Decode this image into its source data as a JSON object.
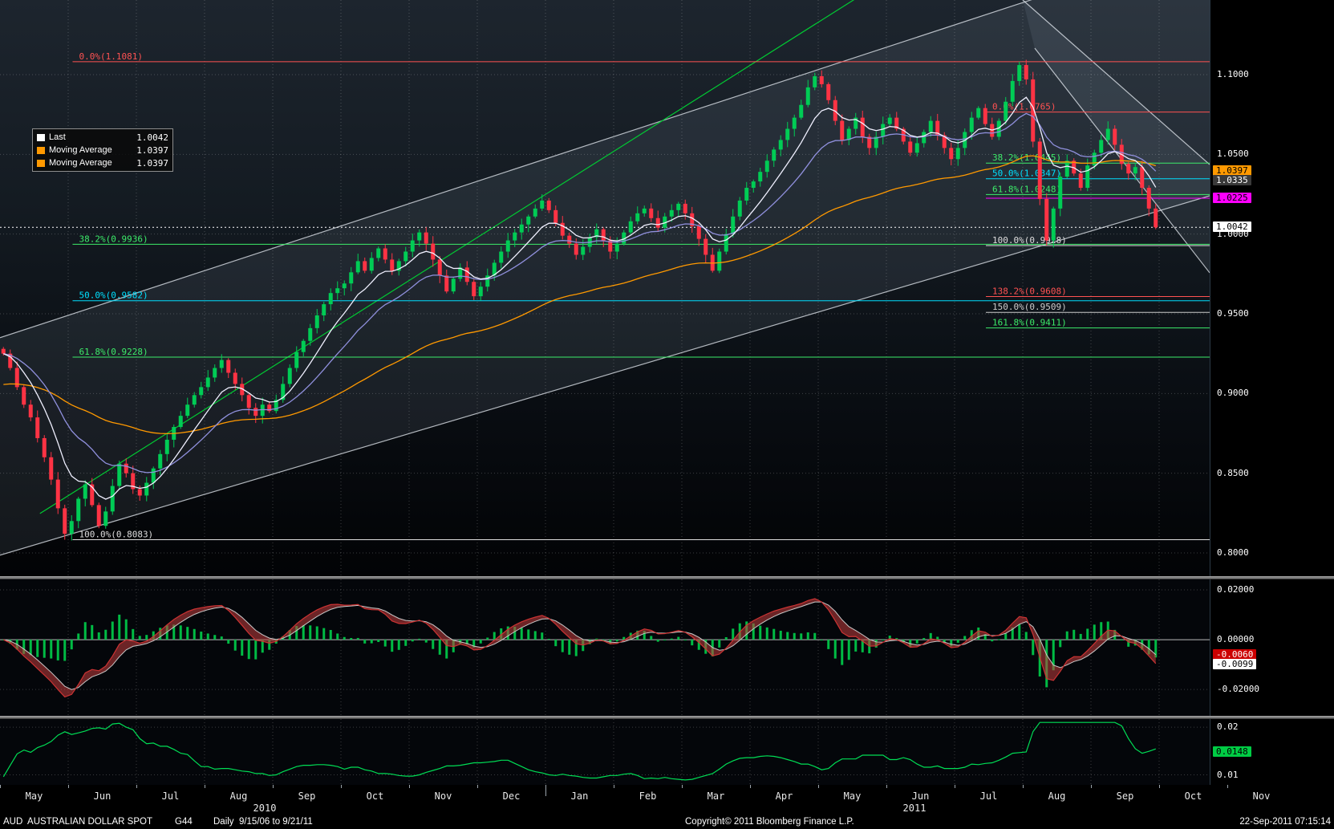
{
  "window": {
    "security": "AUD  AUSTRALIAN DOLLAR SPOT",
    "function_code": "G44",
    "date_range": "Daily  9/15/06 to 9/21/11",
    "copyright": "Copyright© 2011 Bloomberg Finance L.P.",
    "timestamp": "22-Sep-2011 07:15:14"
  },
  "legend": {
    "items": [
      {
        "color": "#ffffff",
        "label": "Last",
        "value": "1.0042"
      },
      {
        "color": "#ff9900",
        "label": "Moving Average",
        "value": "1.0397"
      },
      {
        "color": "#ff9900",
        "label": "Moving Average",
        "value": "1.0397"
      }
    ]
  },
  "chart_data": [
    {
      "type": "candlestick",
      "title": "AUD/USD daily candlesticks with moving averages, trend channels and Fibonacci retracements",
      "months": [
        "May",
        "Jun",
        "Jul",
        "Aug",
        "Sep",
        "Oct",
        "Nov",
        "Dec",
        "Jan",
        "Feb",
        "Mar",
        "Apr",
        "May",
        "Jun",
        "Jul",
        "Aug",
        "Sep",
        "Oct",
        "Nov"
      ],
      "year_labels": [
        {
          "label": "2010",
          "x": 330
        },
        {
          "label": "2011",
          "x": 1140
        }
      ],
      "data_month_span": 17,
      "first_open": 0.928,
      "last_price": 1.0042,
      "closes": [
        0.925,
        0.916,
        0.904,
        0.893,
        0.885,
        0.872,
        0.86,
        0.846,
        0.828,
        0.812,
        0.82,
        0.834,
        0.843,
        0.83,
        0.817,
        0.826,
        0.842,
        0.856,
        0.85,
        0.84,
        0.836,
        0.844,
        0.853,
        0.862,
        0.871,
        0.879,
        0.886,
        0.893,
        0.899,
        0.904,
        0.91,
        0.916,
        0.921,
        0.913,
        0.906,
        0.899,
        0.891,
        0.886,
        0.893,
        0.889,
        0.896,
        0.906,
        0.916,
        0.926,
        0.933,
        0.941,
        0.949,
        0.956,
        0.963,
        0.966,
        0.969,
        0.976,
        0.983,
        0.977,
        0.985,
        0.991,
        0.984,
        0.977,
        0.983,
        0.989,
        0.996,
        1.001,
        0.994,
        0.984,
        0.974,
        0.964,
        0.972,
        0.979,
        0.97,
        0.961,
        0.967,
        0.974,
        0.982,
        0.989,
        0.996,
        1.001,
        1.006,
        1.011,
        1.016,
        1.021,
        1.015,
        1.007,
        0.999,
        0.994,
        0.987,
        0.992,
        0.998,
        1.003,
        0.996,
        0.989,
        0.994,
        1.001,
        1.008,
        1.013,
        1.016,
        1.01,
        1.004,
        1.011,
        1.015,
        1.019,
        1.013,
        1.005,
        0.997,
        0.987,
        0.977,
        0.989,
        1.0,
        1.011,
        1.021,
        1.029,
        1.033,
        1.039,
        1.046,
        1.053,
        1.059,
        1.066,
        1.073,
        1.081,
        1.092,
        1.099,
        1.094,
        1.084,
        1.071,
        1.059,
        1.066,
        1.073,
        1.061,
        1.054,
        1.061,
        1.069,
        1.073,
        1.066,
        1.058,
        1.051,
        1.057,
        1.064,
        1.071,
        1.062,
        1.054,
        1.047,
        1.054,
        1.064,
        1.073,
        1.079,
        1.069,
        1.061,
        1.071,
        1.083,
        1.096,
        1.106,
        1.097,
        1.058,
        1.022,
        0.996,
        1.016,
        1.036,
        1.046,
        1.038,
        1.029,
        1.043,
        1.051,
        1.059,
        1.066,
        1.056,
        1.044,
        1.038,
        1.042,
        1.029,
        1.016,
        1.0042
      ],
      "wick_overrides": {
        "9": {
          "low": 0.8083
        },
        "119": {
          "high": 1.1012
        },
        "149": {
          "high": 1.1081
        },
        "153": {
          "low": 0.9928
        }
      },
      "moving_averages": [
        {
          "period": 8,
          "color": "#f0f0ff",
          "seed": null,
          "last_value": 1.0042
        },
        {
          "period": 18,
          "color": "#9090dd",
          "seed": null,
          "last_value": 1.0335
        },
        {
          "period": 60,
          "color": "#ff9900",
          "seed": 0.905,
          "last_value": 1.0397
        }
      ],
      "ylim": [
        0.7854,
        1.1468
      ],
      "yticks": [
        {
          "label": "1.1000",
          "value": 1.1
        },
        {
          "label": "1.0500",
          "value": 1.05
        },
        {
          "label": "1.0000",
          "value": 1.0
        },
        {
          "label": "0.9500",
          "value": 0.95
        },
        {
          "label": "0.9000",
          "value": 0.9
        },
        {
          "label": "0.8500",
          "value": 0.85
        },
        {
          "label": "0.8000",
          "value": 0.8
        }
      ],
      "axis_badges": [
        {
          "label": "1.0397",
          "value": 1.0397,
          "bg": "#ff9900",
          "fg": "#000000"
        },
        {
          "label": "1.0335",
          "value": 1.0335,
          "bg": "#3a3a3a",
          "fg": "#ffffff"
        },
        {
          "label": "1.0225",
          "value": 1.0225,
          "bg": "#ff00ff",
          "fg": "#000000"
        },
        {
          "label": "1.0042",
          "value": 1.0042,
          "bg": "#ffffff",
          "fg": "#000000"
        }
      ],
      "fib_retracements": [
        {
          "label": "0.0%(1.1081)",
          "value": 1.1081,
          "color": "#ff5252",
          "x1": 0.06,
          "x2": 1
        },
        {
          "label": "38.2%(0.9936)",
          "value": 0.9936,
          "color": "#3dec6a",
          "x1": 0.06,
          "x2": 1
        },
        {
          "label": "50.0%(0.9582)",
          "value": 0.9582,
          "color": "#00e0ff",
          "x1": 0.06,
          "x2": 1
        },
        {
          "label": "61.8%(0.9228)",
          "value": 0.9228,
          "color": "#3dec6a",
          "x1": 0.06,
          "x2": 1
        },
        {
          "label": "100.0%(0.8083)",
          "value": 0.8083,
          "color": "#dedede",
          "x1": 0.06,
          "x2": 1
        },
        {
          "label": "0.0%(1.0765)",
          "value": 1.0765,
          "color": "#ff5252",
          "x1": 0.815,
          "x2": 1
        },
        {
          "label": "38.2%(1.0445)",
          "value": 1.0445,
          "color": "#3dec6a",
          "x1": 0.815,
          "x2": 1
        },
        {
          "label": "50.0%(1.0347)",
          "value": 1.0347,
          "color": "#00e0ff",
          "x1": 0.815,
          "x2": 1
        },
        {
          "label": "61.8%(1.0248)",
          "value": 1.0248,
          "color": "#3dec6a",
          "x1": 0.815,
          "x2": 1
        },
        {
          "label": "100.0%(0.9928)",
          "value": 0.9928,
          "color": "#dedede",
          "x1": 0.815,
          "x2": 1
        },
        {
          "label": "138.2%(0.9608)",
          "value": 0.9608,
          "color": "#ff5252",
          "x1": 0.815,
          "x2": 1
        },
        {
          "label": "150.0%(0.9509)",
          "value": 0.9509,
          "color": "#cccccc",
          "x1": 0.815,
          "x2": 1
        },
        {
          "label": "161.8%(0.9411)",
          "value": 0.9411,
          "color": "#3dec6a",
          "x1": 0.815,
          "x2": 1
        }
      ],
      "extra_level_lines": [
        {
          "value": 1.0225,
          "color": "#ff00ff",
          "x1": 0.815,
          "x2": 1
        },
        {
          "value": 1.0042,
          "color": "#ffffff",
          "dash": "2,3",
          "x1": 0,
          "x2": 1
        }
      ],
      "trend_lines": [
        {
          "p1": [
            0.0,
            0.7986
          ],
          "p2": [
            1.0,
            1.024
          ],
          "color": "rgba(232,238,244,0.75)"
        },
        {
          "p1": [
            0.0,
            0.935
          ],
          "p2": [
            1.0,
            1.1836
          ],
          "color": "rgba(232,238,244,0.75)"
        },
        {
          "p1": [
            0.8455,
            1.1468
          ],
          "p2": [
            1.0,
            1.0436
          ],
          "color": "rgba(232,238,244,0.75)"
        },
        {
          "p1": [
            0.8554,
            1.1166
          ],
          "p2": [
            1.0,
            0.9757
          ],
          "color": "rgba(232,238,244,0.75)"
        },
        {
          "p1": [
            0.033,
            0.8247
          ],
          "p2": [
            0.716,
            1.1518
          ],
          "color": "#00cc33"
        }
      ],
      "channel_fills": [
        {
          "pts": [
            [
              0.0,
              0.7986
            ],
            [
              1.0,
              1.024
            ],
            [
              1.0,
              1.1836
            ],
            [
              0.0,
              0.935
            ]
          ],
          "fill": "rgba(175,195,215,0.10)"
        },
        {
          "pts": [
            [
              0.8455,
              1.1468
            ],
            [
              1.0,
              1.0436
            ],
            [
              1.0,
              0.9757
            ],
            [
              0.8554,
              1.1166
            ]
          ],
          "fill": "rgba(175,195,215,0.10)"
        }
      ],
      "colors": {
        "up": "#00cc55",
        "down": "#ff3344"
      }
    },
    {
      "type": "macd-oscillator",
      "panel": "middle",
      "derived_from": "chart_data.0.closes",
      "params": {
        "fast": 5,
        "slow": 10,
        "signal": 4,
        "hist_gain": 2
      },
      "ylim": [
        -0.0306,
        0.0242
      ],
      "yticks": [
        {
          "label": "0.02000",
          "value": 0.02
        },
        {
          "label": "0.00000",
          "value": 0.0
        },
        {
          "label": "-0.02000",
          "value": -0.02
        }
      ],
      "axis_badges": [
        {
          "label": "-0.0060",
          "value": -0.006,
          "bg": "#cc0000",
          "fg": "#ffffff"
        },
        {
          "label": "-0.0099",
          "value": -0.0099,
          "bg": "#ffffff",
          "fg": "#000000"
        }
      ],
      "last_values": {
        "signal": -0.006,
        "macd": -0.0099
      },
      "colors": {
        "hist": "#00bb44",
        "macd": "#cc3333",
        "signal": "#c8c8c8",
        "fill": "rgba(195,62,62,0.55)"
      }
    },
    {
      "type": "line",
      "panel": "bottom",
      "name": "volatility",
      "derived_from": "chart_data.0.closes",
      "params": {
        "window": 12,
        "gain": 1.6,
        "clamp": [
          0.0085,
          0.021
        ]
      },
      "ylim": [
        0.0079,
        0.0217
      ],
      "yticks": [
        {
          "label": "0.02",
          "value": 0.02
        },
        {
          "label": "0.01",
          "value": 0.01
        }
      ],
      "axis_badges": [
        {
          "label": "0.0148",
          "value": 0.0148,
          "bg": "#00cc44",
          "fg": "#000000"
        }
      ],
      "last_value": 0.0148,
      "color": "#00dd55"
    }
  ]
}
